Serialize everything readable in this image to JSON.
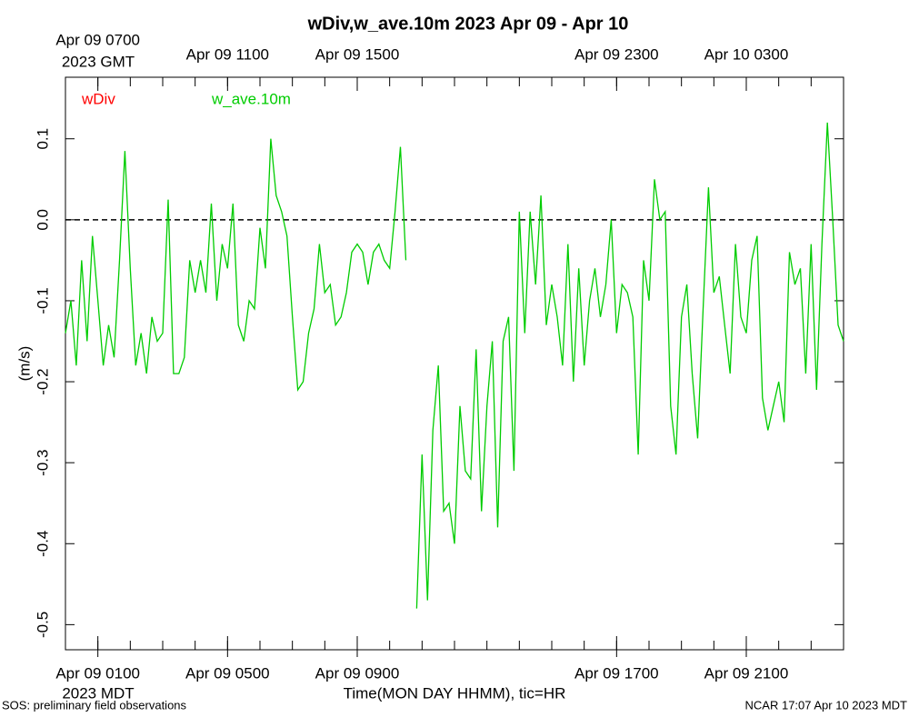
{
  "chart_data": {
    "type": "line",
    "title": "wDiv,w_ave.10m 2023 Apr 09 - Apr 10",
    "xlabel": "Time(MON DAY HHMM), tic=HR",
    "ylabel": "(m/s)",
    "x_note": "2023 MDT",
    "x2_note": "2023 GMT",
    "footer_left": "SOS: preliminary field observations",
    "footer_right": "NCAR 17:07 Apr 10 2023 MDT",
    "xlim": [
      0,
      24
    ],
    "ylim": [
      -0.531,
      0.176
    ],
    "xticks": [
      {
        "value": 1,
        "label": "Apr 09 0100"
      },
      {
        "value": 5,
        "label": "Apr 09 0500"
      },
      {
        "value": 9,
        "label": "Apr 09 0900"
      },
      {
        "value": 17,
        "label": "Apr 09 1700"
      },
      {
        "value": 21,
        "label": "Apr 09 2100"
      }
    ],
    "x2ticks": [
      {
        "value": 1,
        "label": "Apr 09 0700"
      },
      {
        "value": 5,
        "label": "Apr 09 1100"
      },
      {
        "value": 9,
        "label": "Apr 09 1500"
      },
      {
        "value": 17,
        "label": "Apr 09 2300"
      },
      {
        "value": 21,
        "label": "Apr 10 0300"
      }
    ],
    "xminor_ticks": [
      0,
      1,
      2,
      3,
      4,
      5,
      6,
      7,
      8,
      9,
      10,
      11,
      12,
      13,
      14,
      15,
      16,
      17,
      18,
      19,
      20,
      21,
      22,
      23,
      24
    ],
    "yticks": [
      0.1,
      {
        "value": 0,
        "label": "0.0"
      },
      -0.1,
      -0.2,
      -0.3,
      -0.4,
      -0.5
    ],
    "reference_line": 0,
    "x": [
      0,
      0.167,
      0.333,
      0.5,
      0.667,
      0.833,
      1,
      1.167,
      1.333,
      1.5,
      1.667,
      1.833,
      2,
      2.167,
      2.333,
      2.5,
      2.667,
      2.833,
      3,
      3.167,
      3.333,
      3.5,
      3.667,
      3.833,
      4,
      4.167,
      4.333,
      4.5,
      4.667,
      4.833,
      5,
      5.167,
      5.333,
      5.5,
      5.667,
      5.833,
      6,
      6.167,
      6.333,
      6.5,
      6.667,
      6.833,
      7,
      7.167,
      7.333,
      7.5,
      7.667,
      7.833,
      8,
      8.167,
      8.333,
      8.5,
      8.667,
      8.833,
      9,
      9.167,
      9.333,
      9.5,
      9.667,
      9.833,
      10,
      10.167,
      10.333,
      10.5,
      10.667,
      10.833,
      11,
      11.167,
      11.333,
      11.5,
      11.667,
      11.833,
      12,
      12.167,
      12.333,
      12.5,
      12.667,
      12.833,
      13,
      13.167,
      13.333,
      13.5,
      13.667,
      13.833,
      14,
      14.167,
      14.333,
      14.5,
      14.667,
      14.833,
      15,
      15.167,
      15.333,
      15.5,
      15.667,
      15.833,
      16,
      16.167,
      16.333,
      16.5,
      16.667,
      16.833,
      17,
      17.167,
      17.333,
      17.5,
      17.667,
      17.833,
      18,
      18.167,
      18.333,
      18.5,
      18.667,
      18.833,
      19,
      19.167,
      19.333,
      19.5,
      19.667,
      19.833,
      20,
      20.167,
      20.333,
      20.5,
      20.667,
      20.833,
      21,
      21.167,
      21.333,
      21.5,
      21.667,
      21.833,
      22,
      22.167,
      22.333,
      22.5,
      22.667,
      22.833,
      23,
      23.167,
      23.333,
      23.5,
      23.667,
      23.833,
      24
    ],
    "series": [
      {
        "name": "wDiv",
        "color": "#ff0000",
        "values": [
          null,
          null,
          null,
          null,
          null,
          null,
          null,
          null,
          null,
          null,
          null,
          null,
          null,
          null,
          null,
          null,
          null,
          null,
          null,
          null,
          null,
          null,
          null,
          null,
          null,
          null,
          null,
          null,
          null,
          null,
          null,
          null,
          null,
          null,
          null,
          null,
          null,
          null,
          null,
          null,
          null,
          null,
          null,
          null,
          null,
          null,
          null,
          null,
          null,
          null,
          null,
          null,
          null,
          null,
          null,
          null,
          null,
          null,
          null,
          null,
          null,
          null,
          null,
          null,
          null,
          null,
          null,
          null,
          null,
          null,
          null,
          null,
          null,
          null,
          null,
          null,
          null,
          null,
          null,
          null,
          null,
          null,
          null,
          null,
          null,
          null,
          null,
          null,
          null,
          null,
          null,
          null,
          null,
          null,
          null,
          null,
          null,
          null,
          null,
          null,
          null,
          null,
          null,
          null,
          null,
          null,
          null,
          null,
          null,
          null,
          null,
          null,
          null,
          null,
          null,
          null,
          null,
          null,
          null,
          null,
          null,
          null,
          null,
          null,
          null,
          null,
          null,
          null,
          null,
          null,
          null,
          null,
          null,
          null,
          null,
          null,
          null,
          null,
          null,
          null,
          null,
          null,
          null,
          null,
          null
        ]
      },
      {
        "name": "w_ave.10m",
        "color": "#00cc00",
        "values": [
          -0.14,
          -0.1,
          -0.18,
          -0.05,
          -0.15,
          -0.02,
          -0.1,
          -0.18,
          -0.13,
          -0.17,
          -0.05,
          0.085,
          -0.06,
          -0.18,
          -0.14,
          -0.19,
          -0.12,
          -0.15,
          -0.14,
          0.025,
          -0.19,
          -0.19,
          -0.17,
          -0.05,
          -0.09,
          -0.05,
          -0.09,
          0.02,
          -0.1,
          -0.03,
          -0.06,
          0.02,
          -0.13,
          -0.15,
          -0.1,
          -0.11,
          -0.01,
          -0.06,
          0.1,
          0.03,
          0.01,
          -0.02,
          -0.12,
          -0.21,
          -0.2,
          -0.14,
          -0.11,
          -0.03,
          -0.09,
          -0.08,
          -0.13,
          -0.12,
          -0.09,
          -0.04,
          -0.03,
          -0.04,
          -0.08,
          -0.04,
          -0.03,
          -0.05,
          -0.06,
          0.01,
          0.09,
          -0.05,
          null,
          -0.48,
          -0.29,
          -0.47,
          -0.26,
          -0.18,
          -0.36,
          -0.35,
          -0.4,
          -0.23,
          -0.31,
          -0.32,
          -0.16,
          -0.36,
          -0.23,
          -0.15,
          -0.38,
          -0.15,
          -0.12,
          -0.31,
          0.01,
          -0.14,
          0.01,
          -0.08,
          0.03,
          -0.13,
          -0.08,
          -0.12,
          -0.18,
          -0.03,
          -0.2,
          -0.06,
          -0.18,
          -0.1,
          -0.06,
          -0.12,
          -0.08,
          0.0,
          -0.14,
          -0.08,
          -0.09,
          -0.12,
          -0.29,
          -0.05,
          -0.1,
          0.05,
          0.0,
          0.01,
          -0.23,
          -0.29,
          -0.12,
          -0.08,
          -0.19,
          -0.27,
          -0.11,
          0.04,
          -0.09,
          -0.07,
          -0.13,
          -0.19,
          -0.03,
          -0.12,
          -0.14,
          -0.05,
          -0.02,
          -0.22,
          -0.26,
          -0.23,
          -0.2,
          -0.25,
          -0.04,
          -0.08,
          -0.06,
          -0.19,
          -0.03,
          -0.21,
          -0.03,
          0.12,
          0.0,
          -0.13,
          -0.15
        ]
      }
    ]
  }
}
